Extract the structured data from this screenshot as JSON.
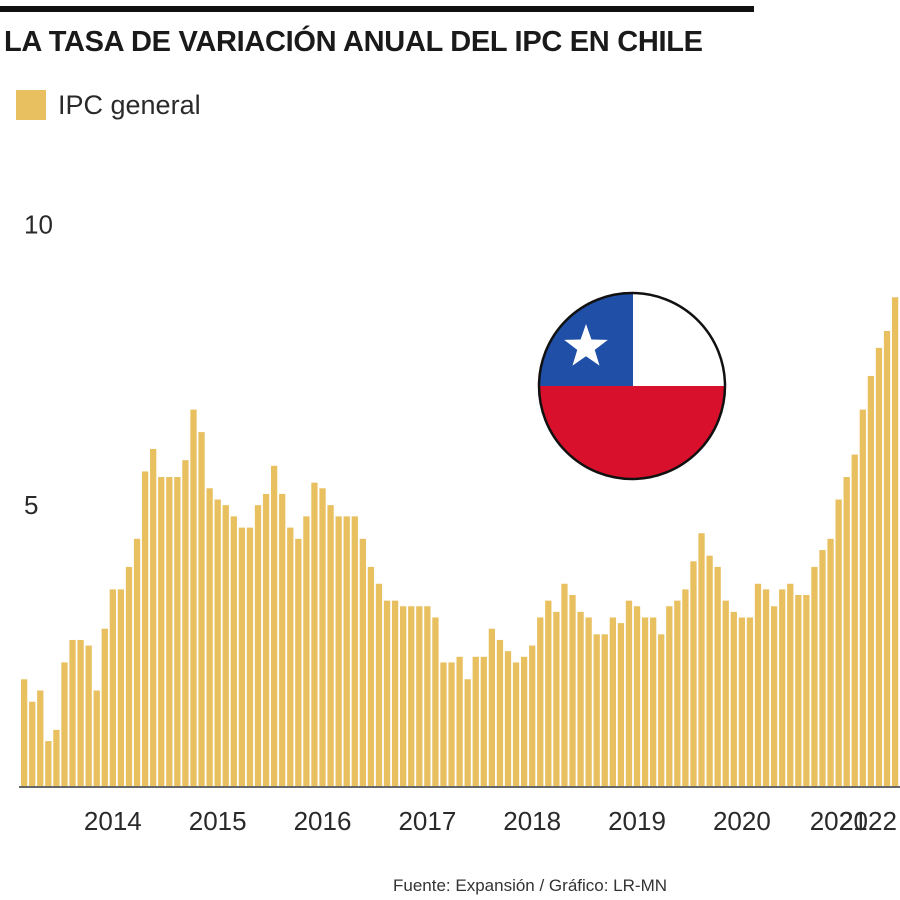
{
  "title": "LA TASA DE VARIACIÓN ANUAL DEL IPC EN CHILE",
  "source": "Fuente: Expansión / Gráfico: LR-MN",
  "colors": {
    "bar": "#E8C060",
    "axis": "#333333",
    "text": "#2a2a2a",
    "flag_blue": "#1F4FA6",
    "flag_red": "#D8102C",
    "flag_white": "#FFFFFF"
  },
  "flag_icon": "chile-flag-icon",
  "chart_data": {
    "type": "bar",
    "title": "LA TASA DE VARIACIÓN ANUAL DEL IPC EN CHILE",
    "xlabel": "",
    "ylabel": "",
    "ylim": [
      0,
      11.5
    ],
    "yticks": [
      5,
      10
    ],
    "grid": false,
    "legend_position": "top-left",
    "x_period": "monthly",
    "x_ticks": [
      {
        "label": "2014",
        "index": 11
      },
      {
        "label": "2015",
        "index": 24
      },
      {
        "label": "2016",
        "index": 37
      },
      {
        "label": "2017",
        "index": 50
      },
      {
        "label": "2018",
        "index": 63
      },
      {
        "label": "2019",
        "index": 76
      },
      {
        "label": "2020",
        "index": 89
      },
      {
        "label": "2021",
        "index": 101
      },
      {
        "label": "2022",
        "index": 114
      }
    ],
    "series": [
      {
        "name": "IPC general",
        "values": [
          1.9,
          1.5,
          1.7,
          0.8,
          1.0,
          2.2,
          2.6,
          2.6,
          2.5,
          1.7,
          2.8,
          3.5,
          3.5,
          3.9,
          4.4,
          5.6,
          6.0,
          5.5,
          5.5,
          5.5,
          5.8,
          6.7,
          6.3,
          5.3,
          5.1,
          5.0,
          4.8,
          4.6,
          4.6,
          5.0,
          5.2,
          5.7,
          5.2,
          4.6,
          4.4,
          4.8,
          5.4,
          5.3,
          5.0,
          4.8,
          4.8,
          4.8,
          4.4,
          3.9,
          3.6,
          3.3,
          3.3,
          3.2,
          3.2,
          3.2,
          3.2,
          3.0,
          2.2,
          2.2,
          2.3,
          1.9,
          2.3,
          2.3,
          2.8,
          2.6,
          2.4,
          2.2,
          2.3,
          2.5,
          3.0,
          3.3,
          3.1,
          3.6,
          3.4,
          3.1,
          3.0,
          2.7,
          2.7,
          3.0,
          2.9,
          3.3,
          3.2,
          3.0,
          3.0,
          2.7,
          3.2,
          3.3,
          3.5,
          4.0,
          4.5,
          4.1,
          3.9,
          3.3,
          3.1,
          3.0,
          3.0,
          3.6,
          3.5,
          3.2,
          3.5,
          3.6,
          3.4,
          3.4,
          3.9,
          4.2,
          4.4,
          5.1,
          5.5,
          5.9,
          6.7,
          7.3,
          7.8,
          8.1,
          8.7
        ]
      }
    ]
  }
}
